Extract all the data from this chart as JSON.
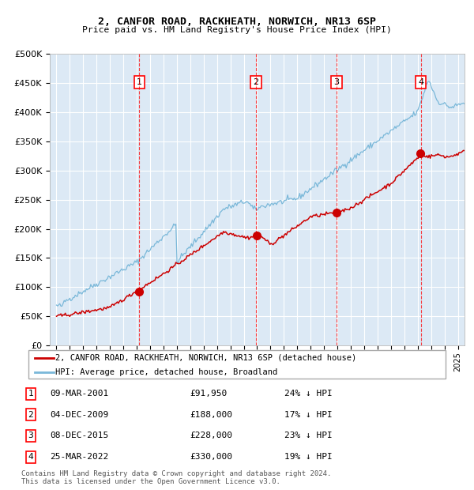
{
  "title1": "2, CANFOR ROAD, RACKHEATH, NORWICH, NR13 6SP",
  "title2": "Price paid vs. HM Land Registry's House Price Index (HPI)",
  "plot_bg": "#dce9f5",
  "hpi_color": "#7ab8d9",
  "price_color": "#cc0000",
  "sale_points": [
    {
      "date_num": 2001.19,
      "price": 91950,
      "label": "1"
    },
    {
      "date_num": 2009.92,
      "price": 188000,
      "label": "2"
    },
    {
      "date_num": 2015.93,
      "price": 228000,
      "label": "3"
    },
    {
      "date_num": 2022.23,
      "price": 330000,
      "label": "4"
    }
  ],
  "legend_entries": [
    "2, CANFOR ROAD, RACKHEATH, NORWICH, NR13 6SP (detached house)",
    "HPI: Average price, detached house, Broadland"
  ],
  "table_rows": [
    {
      "num": "1",
      "date": "09-MAR-2001",
      "price": "£91,950",
      "pct": "24% ↓ HPI"
    },
    {
      "num": "2",
      "date": "04-DEC-2009",
      "price": "£188,000",
      "pct": "17% ↓ HPI"
    },
    {
      "num": "3",
      "date": "08-DEC-2015",
      "price": "£228,000",
      "pct": "23% ↓ HPI"
    },
    {
      "num": "4",
      "date": "25-MAR-2022",
      "price": "£330,000",
      "pct": "19% ↓ HPI"
    }
  ],
  "footer": "Contains HM Land Registry data © Crown copyright and database right 2024.\nThis data is licensed under the Open Government Licence v3.0.",
  "ylim": [
    0,
    500000
  ],
  "xlim_start": 1994.5,
  "xlim_end": 2025.5,
  "yticks": [
    0,
    50000,
    100000,
    150000,
    200000,
    250000,
    300000,
    350000,
    400000,
    450000,
    500000
  ],
  "xticks_start": 1995,
  "xticks_end": 2025
}
